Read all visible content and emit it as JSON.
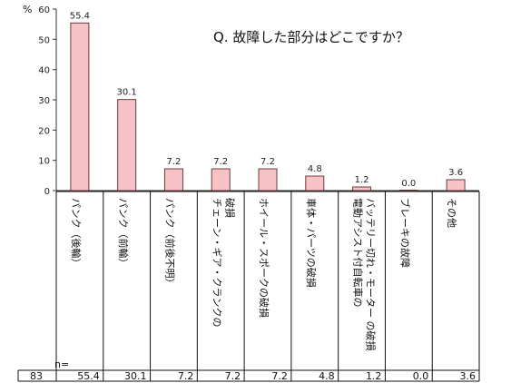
{
  "chart_data": {
    "type": "bar",
    "title": "Q. 故障した部分はどこですか？",
    "ylabel": "%",
    "ylim": [
      0,
      60
    ],
    "yticks": [
      0,
      10,
      20,
      30,
      40,
      50,
      60
    ],
    "grid": false,
    "bar_color": "#f7c3c6",
    "bar_edge_color": "#6b3b3e",
    "categories": [
      [
        "パンク（後輪）"
      ],
      [
        "パンク（前輪）"
      ],
      [
        "パンク（前後不明）"
      ],
      [
        "チェーン・ギア・クランクの",
        "破損"
      ],
      [
        "ホイール・スポークの破損"
      ],
      [
        "車体・パーツの破損"
      ],
      [
        "電動アシスト付自転車の",
        "バッテリー切れ・モーター の破損"
      ],
      [
        "ブレーキの故障"
      ],
      [
        "その他"
      ]
    ],
    "values": [
      55.4,
      30.1,
      7.2,
      7.2,
      7.2,
      4.8,
      1.2,
      0.0,
      3.6
    ],
    "data_labels": [
      "55.4",
      "30.1",
      "7.2",
      "7.2",
      "7.2",
      "4.8",
      "1.2",
      "0.0",
      "3.6"
    ]
  },
  "table": {
    "n_label": "n=",
    "n_value": "83"
  }
}
